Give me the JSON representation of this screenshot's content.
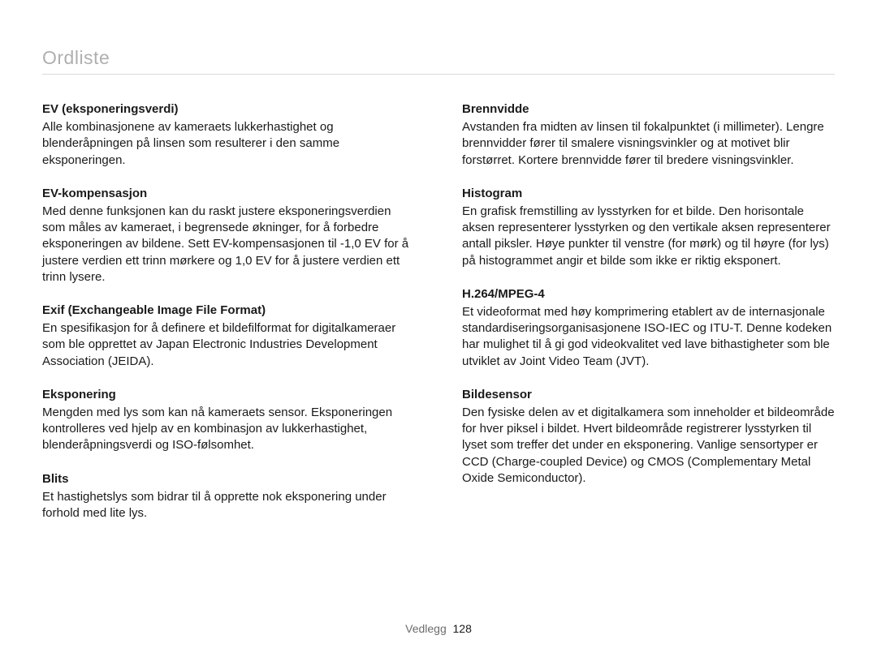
{
  "page_title": "Ordliste",
  "footer_section": "Vedlegg",
  "footer_page": "128",
  "left": [
    {
      "term": "EV (eksponeringsverdi)",
      "def": "Alle kombinasjonene av kameraets lukkerhastighet og blenderåpningen på linsen som resulterer i den samme eksponeringen."
    },
    {
      "term": "EV-kompensasjon",
      "def": "Med denne funksjonen kan du raskt justere eksponeringsverdien som måles av kameraet, i begrensede økninger, for å forbedre eksponeringen av bildene. Sett EV-kompensasjonen til -1,0 EV for å justere verdien ett trinn mørkere og 1,0 EV for å justere verdien ett trinn lysere."
    },
    {
      "term": "Exif (Exchangeable Image File Format)",
      "def": "En spesifikasjon for å definere et bildefilformat for digitalkameraer som ble opprettet av Japan Electronic Industries Development Association (JEIDA)."
    },
    {
      "term": "Eksponering",
      "def": "Mengden med lys som kan nå kameraets sensor. Eksponeringen kontrolleres ved hjelp av en kombinasjon av lukkerhastighet, blenderåpningsverdi og ISO-følsomhet."
    },
    {
      "term": "Blits",
      "def": "Et hastighetslys som bidrar til å opprette nok eksponering under forhold med lite lys."
    }
  ],
  "right": [
    {
      "term": "Brennvidde",
      "def": "Avstanden fra midten av linsen til fokalpunktet (i millimeter). Lengre brennvidder fører til smalere visningsvinkler og at motivet blir forstørret. Kortere brennvidde fører til bredere visningsvinkler."
    },
    {
      "term": "Histogram",
      "def": "En grafisk fremstilling av lysstyrken for et bilde. Den horisontale aksen representerer lysstyrken og den vertikale aksen representerer antall piksler. Høye punkter til venstre (for mørk) og til høyre (for lys) på histogrammet angir et bilde som ikke er riktig eksponert."
    },
    {
      "term": "H.264/MPEG-4",
      "def": "Et videoformat med høy komprimering etablert av de internasjonale standardiseringsorganisasjonene ISO-IEC og ITU-T. Denne kodeken har mulighet til å gi god videokvalitet ved lave bithastigheter som ble utviklet av Joint Video Team (JVT)."
    },
    {
      "term": "Bildesensor",
      "def": "Den fysiske delen av et digitalkamera som inneholder et bildeområde for hver piksel i bildet. Hvert bildeområde registrerer lysstyrken til lyset som treffer det under en eksponering. Vanlige sensortyper er CCD (Charge-coupled Device) og CMOS (Complementary Metal Oxide Semiconductor)."
    }
  ]
}
